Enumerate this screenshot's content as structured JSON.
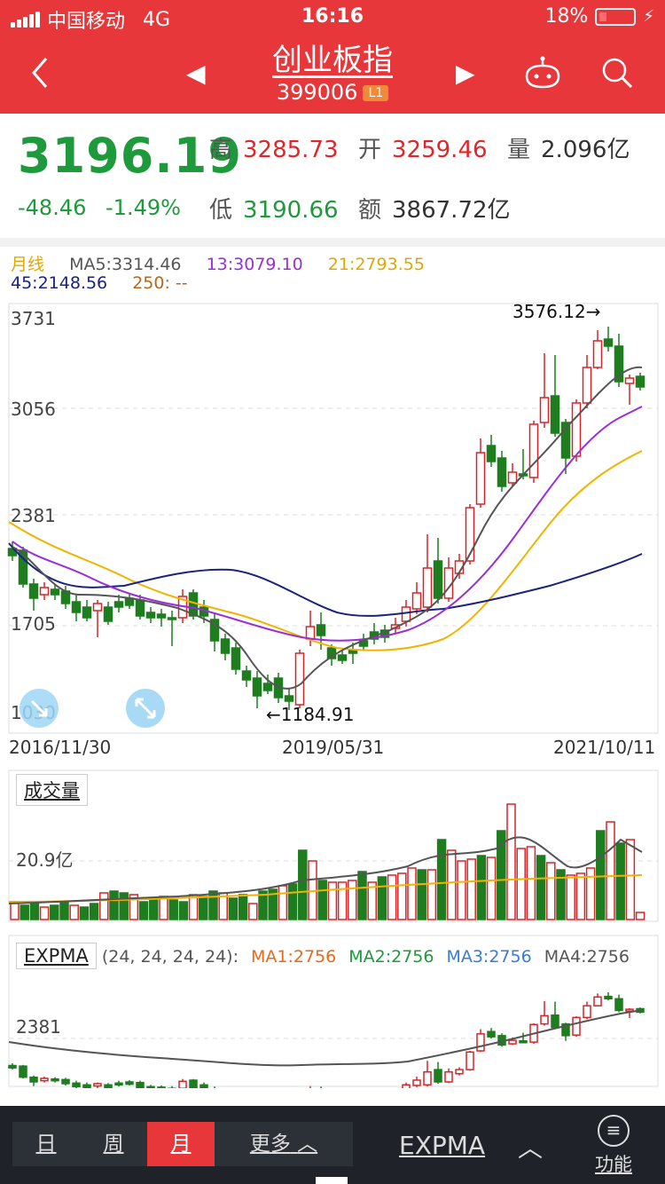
{
  "status": {
    "carrier": "中国移动",
    "network": "4G",
    "time": "16:16",
    "battery": "18%"
  },
  "header": {
    "title": "创业板指",
    "code": "399006",
    "level_badge": "L1",
    "back": "<",
    "prev": "◀",
    "next": "▶"
  },
  "quote": {
    "price": "3196.19",
    "change": "-48.46",
    "change_pct": "-1.49%",
    "high_label": "高",
    "high": "3285.73",
    "open_label": "开",
    "open": "3259.46",
    "vol_label": "量",
    "vol": "2.096亿",
    "low_label": "低",
    "low": "3190.66",
    "amt_label": "额",
    "amt": "3867.72亿"
  },
  "ma_legend": {
    "period": "月线",
    "ma5": "MA5:3314.46",
    "ma13": "13:3079.10",
    "ma21": "21:2793.55",
    "ma45": "45:2148.56",
    "ma250": "250: --"
  },
  "chart_data": {
    "type": "candlestick",
    "y_labels": [
      "3731",
      "3056",
      "2381",
      "1705",
      "1030"
    ],
    "dates": [
      "2016/11/30",
      "2019/05/31",
      "2021/10/11"
    ],
    "high_marker": "3576.12→",
    "low_marker": "←1184.91",
    "colors": {
      "up": "#d4262a",
      "down": "#1e7d1e",
      "ma5": "#555555",
      "ma13": "#9b2ed6",
      "ma21": "#f0b400",
      "ma45": "#1a237e"
    }
  },
  "volume": {
    "title": "成交量",
    "level_label": "20.9亿"
  },
  "expma": {
    "name": "EXPMA",
    "params": "(24, 24, 24, 24):",
    "ma1": "MA1:2756",
    "ma2": "MA2:2756",
    "ma3": "MA3:2756",
    "ma4": "MA4:2756",
    "level_label": "2381"
  },
  "bottom": {
    "tab_day": "日",
    "tab_week": "周",
    "tab_month": "月",
    "tab_more": "更多",
    "indicator": "EXPMA",
    "func": "功能"
  }
}
